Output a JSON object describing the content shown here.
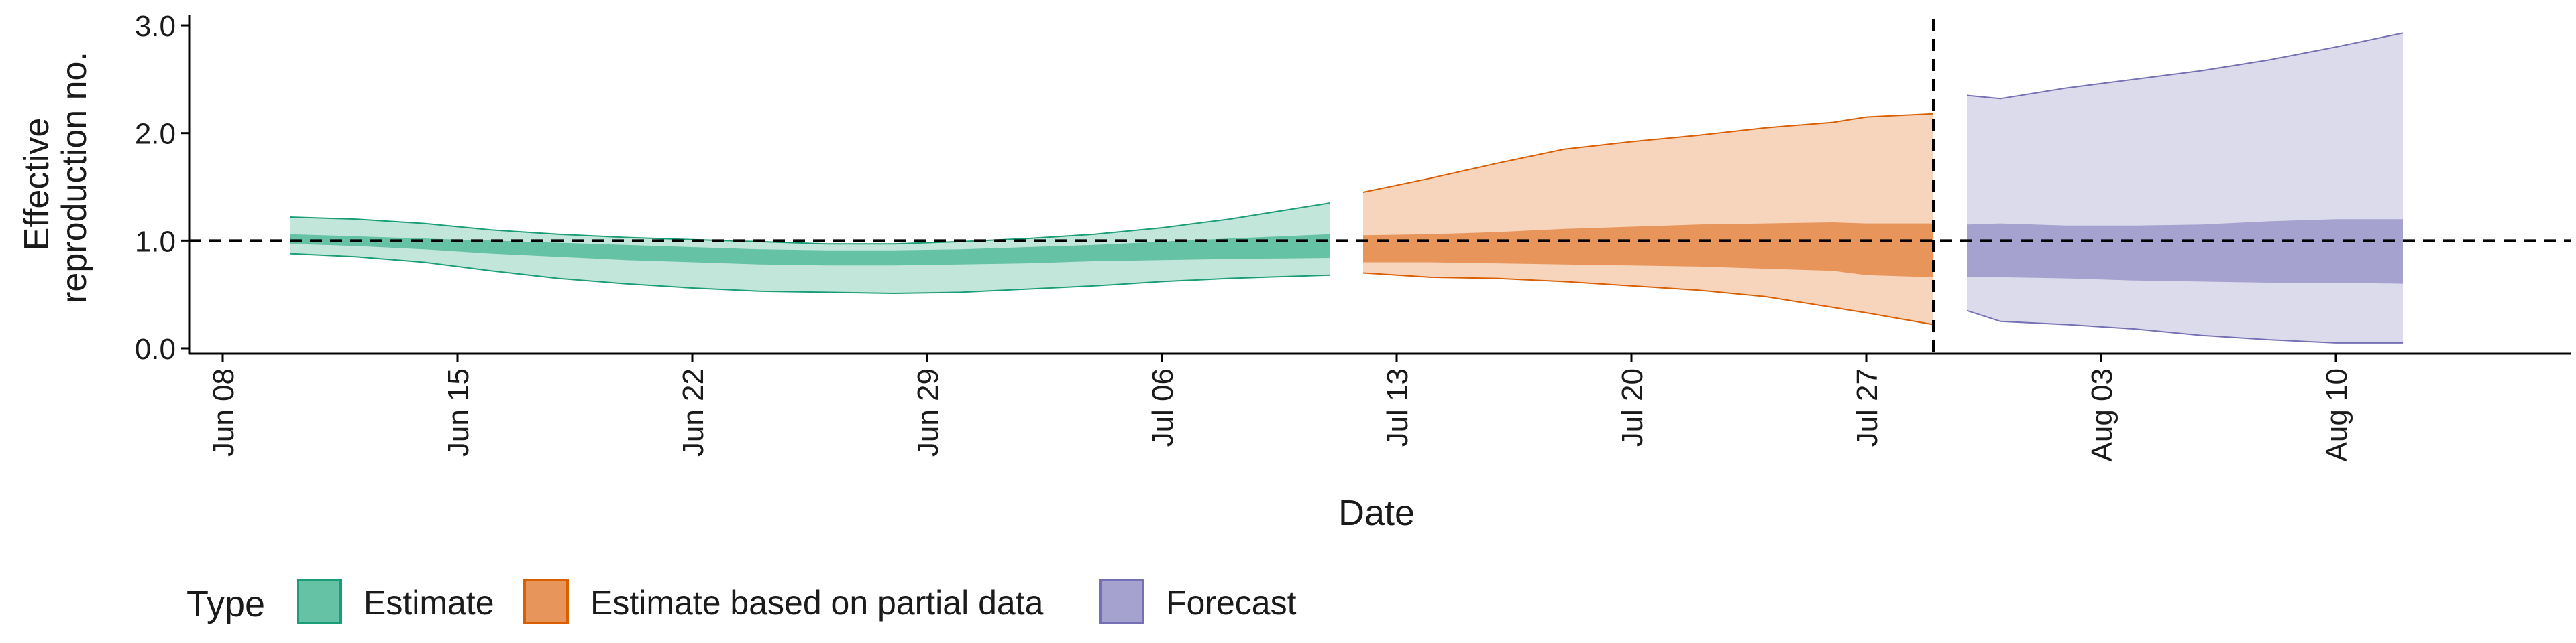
{
  "chart_data": {
    "type": "area",
    "xlabel": "Date",
    "ylabel_lines": [
      "Effective",
      "reproduction no."
    ],
    "ylim": [
      -0.05,
      3.1
    ],
    "y_ticks": [
      0.0,
      1.0,
      2.0,
      3.0
    ],
    "y_tick_labels": [
      "0.0",
      "1.0",
      "2.0",
      "3.0"
    ],
    "x_start": "2020-06-07",
    "x_end": "2020-08-17",
    "x_ticks": [
      "2020-06-08",
      "2020-06-15",
      "2020-06-22",
      "2020-06-29",
      "2020-07-06",
      "2020-07-13",
      "2020-07-20",
      "2020-07-27",
      "2020-08-03",
      "2020-08-10"
    ],
    "x_tick_labels": [
      "Jun 08",
      "Jun 15",
      "Jun 22",
      "Jun 29",
      "Jul 06",
      "Jul 13",
      "Jul 20",
      "Jul 27",
      "Aug 03",
      "Aug 10"
    ],
    "reference_line_y": 1.0,
    "forecast_divider_x": "2020-07-29",
    "legend": {
      "title": "Type",
      "position": "bottom",
      "entries": [
        {
          "label": "Estimate",
          "fill": "#66c2a5",
          "stroke": "#1b9e77"
        },
        {
          "label": "Estimate based on partial data",
          "fill": "#e8955c",
          "stroke": "#d95f02"
        },
        {
          "label": "Forecast",
          "fill": "#a6a2d0",
          "stroke": "#7570b3"
        }
      ]
    },
    "series": [
      {
        "name": "Estimate",
        "outer_fill": "#c2e6da",
        "inner_fill": "#66c2a5",
        "line": "#1b9e77",
        "x": [
          "2020-06-10",
          "2020-06-12",
          "2020-06-14",
          "2020-06-16",
          "2020-06-18",
          "2020-06-20",
          "2020-06-22",
          "2020-06-24",
          "2020-06-26",
          "2020-06-28",
          "2020-06-30",
          "2020-07-02",
          "2020-07-04",
          "2020-07-06",
          "2020-07-08",
          "2020-07-11"
        ],
        "outer_low": [
          0.88,
          0.85,
          0.8,
          0.72,
          0.65,
          0.6,
          0.56,
          0.53,
          0.52,
          0.51,
          0.52,
          0.55,
          0.58,
          0.62,
          0.65,
          0.68
        ],
        "outer_high": [
          1.22,
          1.2,
          1.16,
          1.1,
          1.06,
          1.03,
          1.01,
          0.99,
          0.97,
          0.97,
          0.99,
          1.02,
          1.06,
          1.12,
          1.2,
          1.35
        ],
        "inner_low": [
          0.97,
          0.95,
          0.92,
          0.88,
          0.85,
          0.82,
          0.8,
          0.78,
          0.77,
          0.77,
          0.78,
          0.79,
          0.81,
          0.82,
          0.83,
          0.84
        ],
        "inner_high": [
          1.06,
          1.04,
          1.02,
          1.0,
          0.98,
          0.96,
          0.94,
          0.92,
          0.91,
          0.91,
          0.92,
          0.94,
          0.96,
          0.99,
          1.02,
          1.06
        ]
      },
      {
        "name": "Estimate based on partial data",
        "outer_fill": "#f7d4bc",
        "inner_fill": "#e8955c",
        "line": "#d95f02",
        "x": [
          "2020-07-12",
          "2020-07-14",
          "2020-07-16",
          "2020-07-18",
          "2020-07-20",
          "2020-07-22",
          "2020-07-24",
          "2020-07-26",
          "2020-07-27",
          "2020-07-29"
        ],
        "outer_low": [
          0.7,
          0.66,
          0.65,
          0.62,
          0.58,
          0.54,
          0.48,
          0.38,
          0.33,
          0.22
        ],
        "outer_high": [
          1.45,
          1.58,
          1.72,
          1.85,
          1.92,
          1.98,
          2.05,
          2.1,
          2.15,
          2.18
        ],
        "inner_low": [
          0.8,
          0.8,
          0.79,
          0.78,
          0.77,
          0.76,
          0.74,
          0.72,
          0.68,
          0.66
        ],
        "inner_high": [
          1.05,
          1.06,
          1.08,
          1.11,
          1.13,
          1.15,
          1.16,
          1.17,
          1.16,
          1.16
        ]
      },
      {
        "name": "Forecast",
        "outer_fill": "#dcdbec",
        "inner_fill": "#a6a2d0",
        "line": "#7570b3",
        "x": [
          "2020-07-30",
          "2020-07-31",
          "2020-08-02",
          "2020-08-04",
          "2020-08-06",
          "2020-08-08",
          "2020-08-10",
          "2020-08-12"
        ],
        "outer_low": [
          0.35,
          0.25,
          0.22,
          0.18,
          0.12,
          0.08,
          0.05,
          0.05
        ],
        "outer_high": [
          2.35,
          2.32,
          2.42,
          2.5,
          2.58,
          2.68,
          2.8,
          2.93
        ],
        "inner_low": [
          0.66,
          0.66,
          0.65,
          0.63,
          0.62,
          0.61,
          0.61,
          0.6
        ],
        "inner_high": [
          1.15,
          1.16,
          1.14,
          1.14,
          1.15,
          1.18,
          1.2,
          1.2
        ]
      }
    ]
  }
}
